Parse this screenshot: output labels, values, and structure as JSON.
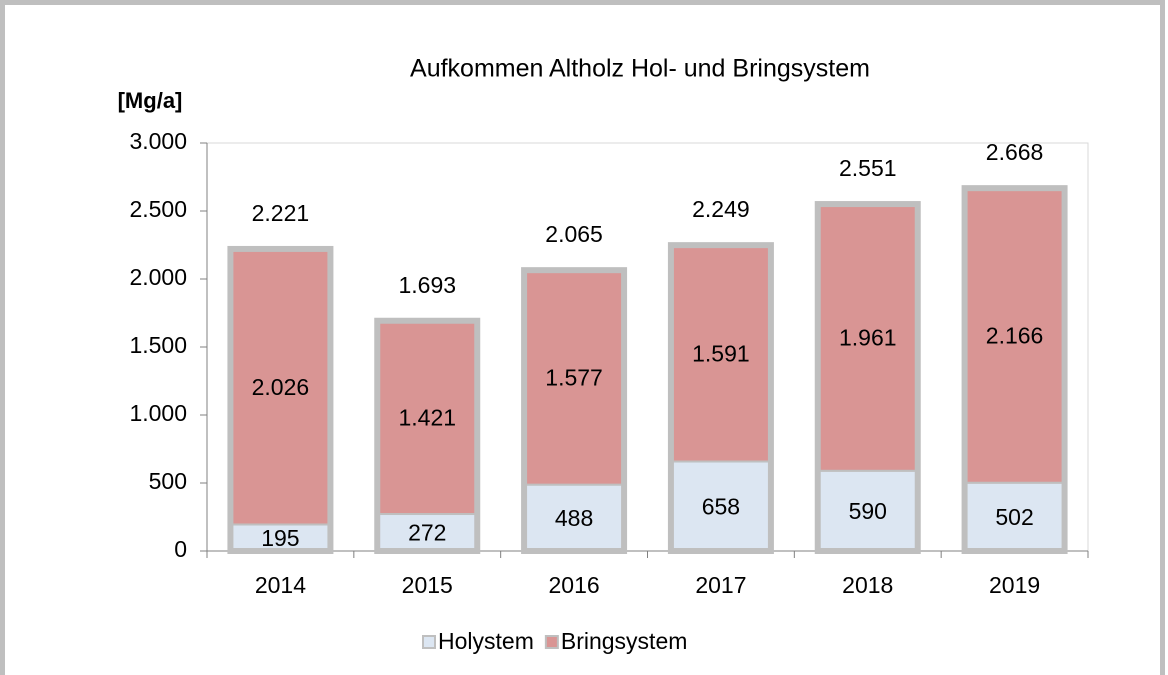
{
  "chart_data": {
    "type": "stacked_bar",
    "title": "Aufkommen Altholz Hol- und Bringsystem",
    "y_label": "[Mg/a]",
    "categories": [
      "2014",
      "2015",
      "2016",
      "2017",
      "2018",
      "2019"
    ],
    "series": [
      {
        "name": "Holystem",
        "color": "#dce6f2",
        "values": [
          195,
          272,
          488,
          658,
          590,
          502
        ]
      },
      {
        "name": "Bringsystem",
        "color": "#d99594",
        "values": [
          2026,
          1421,
          1577,
          1591,
          1961,
          2166
        ],
        "value_labels": [
          "2.026",
          "1.421",
          "1.577",
          "1.591",
          "1.961",
          "2.166"
        ]
      }
    ],
    "totals": {
      "values": [
        2221,
        1693,
        2065,
        2249,
        2551,
        2668
      ],
      "value_labels": [
        "2.221",
        "1.693",
        "2.065",
        "2.249",
        "2.551",
        "2.668"
      ]
    },
    "ylim": [
      0,
      3000
    ],
    "yticks": [
      0,
      {
        "value": 500,
        "label": "500"
      },
      {
        "value": 1000,
        "label": "1.000"
      },
      {
        "value": 1500,
        "label": "1.500"
      },
      {
        "value": 2000,
        "label": "2.000"
      },
      {
        "value": 2500,
        "label": "2.500"
      },
      {
        "value": 3000,
        "label": "3.000"
      }
    ],
    "legend": "bottom"
  }
}
